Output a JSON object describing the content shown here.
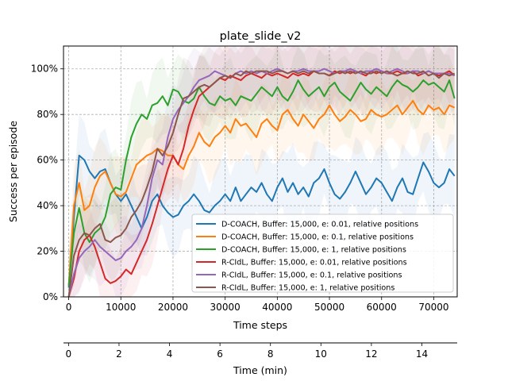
{
  "chart_data": {
    "type": "line",
    "title": "plate_slide_v2",
    "xlabel": "Time steps",
    "ylabel": "Success per episode",
    "secondary_xlabel": "Time (min)",
    "xlim": [
      -1000,
      74500
    ],
    "ylim": [
      0,
      110
    ],
    "secondary_xlim": [
      -0.2,
      15.4
    ],
    "x_ticks": [
      0,
      10000,
      20000,
      30000,
      40000,
      50000,
      60000,
      70000
    ],
    "x_tick_labels": [
      "0",
      "10000",
      "20000",
      "30000",
      "40000",
      "50000",
      "60000",
      "70000"
    ],
    "y_ticks": [
      0,
      20,
      40,
      60,
      80,
      100
    ],
    "y_tick_labels": [
      "0%",
      "20%",
      "40%",
      "60%",
      "80%",
      "100%"
    ],
    "secondary_x_ticks": [
      0,
      2,
      4,
      6,
      8,
      10,
      12,
      14
    ],
    "secondary_x_tick_labels": [
      "0",
      "2",
      "4",
      "6",
      "8",
      "10",
      "12",
      "14"
    ],
    "grid": true,
    "legend_position": "lower-right",
    "series": [
      {
        "name": "D-COACH, Buffer: 15,000, e: 0.01, relative positions",
        "color": "#1f77b4",
        "x": [
          0,
          1000,
          2000,
          3000,
          4000,
          5000,
          6000,
          7000,
          8000,
          9000,
          10000,
          11000,
          12000,
          13000,
          14000,
          15000,
          16000,
          17000,
          18000,
          19000,
          20000,
          21000,
          22000,
          23000,
          24000,
          25000,
          26000,
          27000,
          28000,
          29000,
          30000,
          31000,
          32000,
          33000,
          34000,
          35000,
          36000,
          37000,
          38000,
          39000,
          40000,
          41000,
          42000,
          43000,
          44000,
          45000,
          46000,
          47000,
          48000,
          49000,
          50000,
          51000,
          52000,
          53000,
          54000,
          55000,
          56000,
          57000,
          58000,
          59000,
          60000,
          61000,
          62000,
          63000,
          64000,
          65000,
          66000,
          67000,
          68000,
          69000,
          70000,
          71000,
          72000,
          73000,
          74000
        ],
        "y": [
          4,
          35,
          62,
          60,
          55,
          52,
          55,
          56,
          50,
          45,
          42,
          45,
          40,
          35,
          30,
          35,
          42,
          45,
          40,
          37,
          35,
          36,
          40,
          42,
          45,
          42,
          38,
          37,
          40,
          42,
          45,
          42,
          48,
          42,
          45,
          48,
          46,
          50,
          45,
          42,
          48,
          52,
          46,
          50,
          45,
          48,
          44,
          50,
          52,
          56,
          50,
          45,
          43,
          46,
          50,
          55,
          50,
          45,
          48,
          52,
          50,
          46,
          42,
          48,
          52,
          46,
          45,
          52,
          59,
          55,
          50,
          48,
          50,
          56,
          53
        ]
      },
      {
        "name": "D-COACH, Buffer: 15,000, e: 0.1, relative positions",
        "color": "#ff7f0e",
        "x": [
          0,
          1000,
          2000,
          3000,
          4000,
          5000,
          6000,
          7000,
          8000,
          9000,
          10000,
          11000,
          12000,
          13000,
          14000,
          15000,
          16000,
          17000,
          18000,
          19000,
          20000,
          21000,
          22000,
          23000,
          24000,
          25000,
          26000,
          27000,
          28000,
          29000,
          30000,
          31000,
          32000,
          33000,
          34000,
          35000,
          36000,
          37000,
          38000,
          39000,
          40000,
          41000,
          42000,
          43000,
          44000,
          45000,
          46000,
          47000,
          48000,
          49000,
          50000,
          51000,
          52000,
          53000,
          54000,
          55000,
          56000,
          57000,
          58000,
          59000,
          60000,
          61000,
          62000,
          63000,
          64000,
          65000,
          66000,
          67000,
          68000,
          69000,
          70000,
          71000,
          72000,
          73000,
          74000
        ],
        "y": [
          5,
          40,
          50,
          38,
          40,
          48,
          53,
          55,
          50,
          45,
          44,
          46,
          52,
          58,
          60,
          62,
          63,
          65,
          64,
          62,
          62,
          58,
          56,
          62,
          66,
          72,
          68,
          66,
          70,
          72,
          75,
          72,
          78,
          75,
          76,
          73,
          70,
          76,
          78,
          75,
          73,
          80,
          82,
          78,
          75,
          80,
          77,
          74,
          78,
          80,
          84,
          80,
          77,
          79,
          82,
          80,
          77,
          78,
          82,
          80,
          79,
          80,
          82,
          84,
          80,
          83,
          86,
          82,
          80,
          84,
          82,
          83,
          80,
          84,
          83
        ]
      },
      {
        "name": "D-COACH, Buffer: 15,000, e: 1, relative positions",
        "color": "#2ca02c",
        "x": [
          0,
          1000,
          2000,
          3000,
          4000,
          5000,
          6000,
          7000,
          8000,
          9000,
          10000,
          11000,
          12000,
          13000,
          14000,
          15000,
          16000,
          17000,
          18000,
          19000,
          20000,
          21000,
          22000,
          23000,
          24000,
          25000,
          26000,
          27000,
          28000,
          29000,
          30000,
          31000,
          32000,
          33000,
          34000,
          35000,
          36000,
          37000,
          38000,
          39000,
          40000,
          41000,
          42000,
          43000,
          44000,
          45000,
          46000,
          47000,
          48000,
          49000,
          50000,
          51000,
          52000,
          53000,
          54000,
          55000,
          56000,
          57000,
          58000,
          59000,
          60000,
          61000,
          62000,
          63000,
          64000,
          65000,
          66000,
          67000,
          68000,
          69000,
          70000,
          71000,
          72000,
          73000,
          74000
        ],
        "y": [
          5,
          28,
          39,
          28,
          24,
          28,
          30,
          35,
          45,
          48,
          47,
          60,
          70,
          76,
          80,
          78,
          84,
          85,
          88,
          84,
          91,
          90,
          86,
          85,
          87,
          92,
          88,
          85,
          84,
          88,
          86,
          87,
          84,
          88,
          87,
          86,
          89,
          92,
          90,
          88,
          92,
          88,
          86,
          90,
          95,
          91,
          88,
          90,
          92,
          88,
          92,
          94,
          90,
          88,
          86,
          90,
          94,
          91,
          89,
          92,
          90,
          88,
          92,
          95,
          93,
          92,
          90,
          92,
          95,
          93,
          94,
          92,
          90,
          95,
          87
        ]
      },
      {
        "name": "R-CIdL, Buffer: 15,000, e: 0.01, relative positions",
        "color": "#d62728",
        "x": [
          0,
          1000,
          2000,
          3000,
          4000,
          5000,
          6000,
          7000,
          8000,
          9000,
          10000,
          11000,
          12000,
          13000,
          14000,
          15000,
          16000,
          17000,
          18000,
          19000,
          20000,
          21000,
          22000,
          23000,
          24000,
          25000,
          26000,
          27000,
          28000,
          29000,
          30000,
          31000,
          32000,
          33000,
          34000,
          35000,
          36000,
          37000,
          38000,
          39000,
          40000,
          41000,
          42000,
          43000,
          44000,
          45000,
          46000,
          47000,
          48000,
          49000,
          50000,
          51000,
          52000,
          53000,
          54000,
          55000,
          56000,
          57000,
          58000,
          59000,
          60000,
          61000,
          62000,
          63000,
          64000,
          65000,
          66000,
          67000,
          68000,
          69000,
          70000,
          71000,
          72000,
          73000,
          74000
        ],
        "y": [
          0,
          8,
          20,
          25,
          27,
          22,
          15,
          8,
          6,
          7,
          9,
          12,
          10,
          15,
          20,
          25,
          32,
          40,
          48,
          56,
          62,
          58,
          65,
          75,
          82,
          88,
          90,
          92,
          94,
          96,
          95,
          97,
          96,
          95,
          97,
          98,
          97,
          96,
          98,
          97,
          98,
          97,
          96,
          98,
          97,
          98,
          97,
          99,
          98,
          98,
          97,
          99,
          98,
          99,
          98,
          99,
          98,
          97,
          99,
          98,
          99,
          98,
          98,
          99,
          98,
          98,
          99,
          97,
          98,
          99,
          98,
          97,
          98,
          99,
          97
        ]
      },
      {
        "name": "R-CIdL, Buffer: 15,000, e: 0.1, relative positions",
        "color": "#9467bd",
        "x": [
          0,
          1000,
          2000,
          3000,
          4000,
          5000,
          6000,
          7000,
          8000,
          9000,
          10000,
          11000,
          12000,
          13000,
          14000,
          15000,
          16000,
          17000,
          18000,
          19000,
          20000,
          21000,
          22000,
          23000,
          24000,
          25000,
          26000,
          27000,
          28000,
          29000,
          30000,
          31000,
          32000,
          33000,
          34000,
          35000,
          36000,
          37000,
          38000,
          39000,
          40000,
          41000,
          42000,
          43000,
          44000,
          45000,
          46000,
          47000,
          48000,
          49000,
          50000,
          51000,
          52000,
          53000,
          54000,
          55000,
          56000,
          57000,
          58000,
          59000,
          60000,
          61000,
          62000,
          63000,
          64000,
          65000,
          66000,
          67000,
          68000,
          69000,
          70000,
          71000,
          72000,
          73000,
          74000
        ],
        "y": [
          0,
          10,
          17,
          20,
          22,
          25,
          22,
          20,
          18,
          16,
          17,
          20,
          22,
          25,
          30,
          40,
          52,
          60,
          58,
          70,
          78,
          82,
          85,
          88,
          92,
          95,
          96,
          97,
          99,
          98,
          97,
          96,
          98,
          99,
          98,
          99,
          98,
          99,
          98,
          99,
          100,
          99,
          98,
          99,
          99,
          100,
          99,
          99,
          99,
          100,
          99,
          98,
          99,
          99,
          100,
          99,
          98,
          99,
          99,
          100,
          99,
          98,
          99,
          100,
          99,
          98,
          99,
          99,
          98,
          99,
          98,
          98,
          98,
          98,
          97
        ]
      },
      {
        "name": "R-CIdL, Buffer: 15,000, e: 1, relative positions",
        "color": "#8c564b",
        "x": [
          0,
          1000,
          2000,
          3000,
          4000,
          5000,
          6000,
          7000,
          8000,
          9000,
          10000,
          11000,
          12000,
          13000,
          14000,
          15000,
          16000,
          17000,
          18000,
          19000,
          20000,
          21000,
          22000,
          23000,
          24000,
          25000,
          26000,
          27000,
          28000,
          29000,
          30000,
          31000,
          32000,
          33000,
          34000,
          35000,
          36000,
          37000,
          38000,
          39000,
          40000,
          41000,
          42000,
          43000,
          44000,
          45000,
          46000,
          47000,
          48000,
          49000,
          50000,
          51000,
          52000,
          53000,
          54000,
          55000,
          56000,
          57000,
          58000,
          59000,
          60000,
          61000,
          62000,
          63000,
          64000,
          65000,
          66000,
          67000,
          68000,
          69000,
          70000,
          71000,
          72000,
          73000,
          74000
        ],
        "y": [
          0,
          18,
          25,
          28,
          27,
          30,
          32,
          25,
          24,
          26,
          27,
          30,
          35,
          38,
          42,
          48,
          55,
          65,
          62,
          66,
          72,
          80,
          87,
          88,
          90,
          92,
          93,
          92,
          94,
          96,
          97,
          96,
          98,
          97,
          99,
          98,
          99,
          99,
          99,
          98,
          99,
          99,
          98,
          99,
          98,
          99,
          98,
          99,
          98,
          98,
          97,
          98,
          99,
          98,
          99,
          98,
          99,
          98,
          98,
          99,
          98,
          99,
          98,
          97,
          98,
          99,
          98,
          98,
          99,
          97,
          98,
          96,
          98,
          97,
          98
        ]
      }
    ]
  }
}
